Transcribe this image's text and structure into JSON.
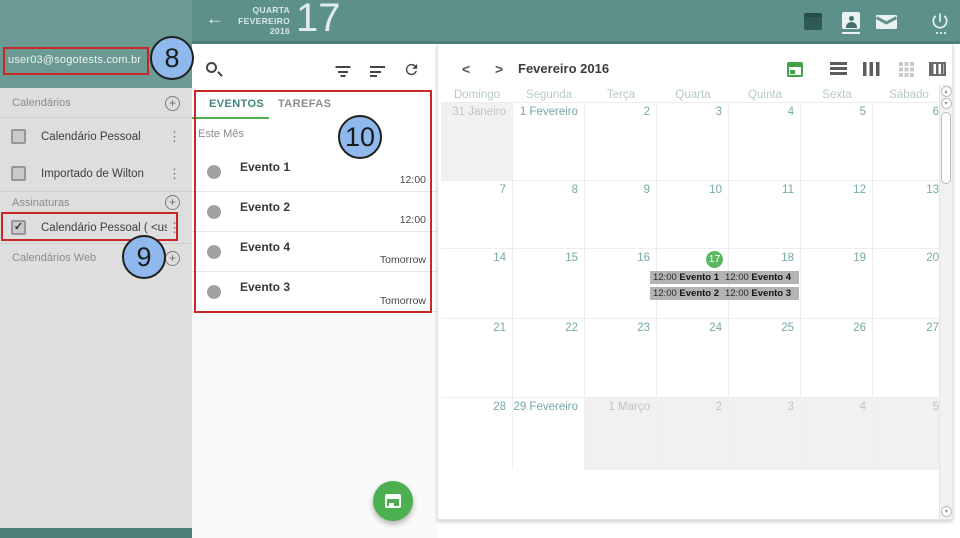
{
  "icons": {
    "back": "←",
    "menu": "⋮",
    "plus": "+",
    "check": "✓",
    "prev": "<",
    "next": ">",
    "scroll_up": "▴",
    "scroll_down": "▾"
  },
  "colors": {
    "accent_green": "#4caf50",
    "header_teal": "#5d908a",
    "sidebar_teal": "#6a9a93",
    "chip_gray": "#b3b3b3",
    "annotation_red": "#c62828",
    "annotation_blue": "#8fb9ec"
  },
  "annotations": {
    "badge8": "8",
    "badge9": "9",
    "badge10": "10"
  },
  "sidebar": {
    "email": "user03@sogotests.com.br",
    "calendars_section": "Calendários",
    "calendars": [
      {
        "label": "Calendário Pessoal",
        "checked": false
      },
      {
        "label": "Importado de Wilton",
        "checked": false
      }
    ],
    "subscriptions_section": "Assinaturas",
    "subscriptions": [
      {
        "label": "Calendário Pessoal ( <user...",
        "checked": true
      }
    ],
    "web_section": "Calendários Web"
  },
  "top_header": {
    "weekday": "QUARTA",
    "month": "FEVEREIRO",
    "year": "2016",
    "day_number": "17"
  },
  "list_panel": {
    "tabs": [
      {
        "label": "EVENTOS",
        "active": true
      },
      {
        "label": "TAREFAS",
        "active": false
      }
    ],
    "group_label": "Este Mês",
    "events": [
      {
        "title": "Evento 1",
        "when": "12:00"
      },
      {
        "title": "Evento 2",
        "when": "12:00"
      },
      {
        "title": "Evento 4",
        "when": "Tomorrow"
      },
      {
        "title": "Evento 3",
        "when": "Tomorrow"
      }
    ]
  },
  "calendar": {
    "title": "Fevereiro 2016",
    "day_headers": [
      "Domingo",
      "Segunda",
      "Terça",
      "Quarta",
      "Quinta",
      "Sexta",
      "Sábado"
    ],
    "weeks": [
      [
        {
          "label": "31 Janeiro",
          "outside": true
        },
        {
          "label": "1 Fevereiro"
        },
        {
          "label": "2"
        },
        {
          "label": "3"
        },
        {
          "label": "4"
        },
        {
          "label": "5"
        },
        {
          "label": "6"
        }
      ],
      [
        {
          "label": "7"
        },
        {
          "label": "8"
        },
        {
          "label": "9"
        },
        {
          "label": "10"
        },
        {
          "label": "11"
        },
        {
          "label": "12"
        },
        {
          "label": "13"
        }
      ],
      [
        {
          "label": "14"
        },
        {
          "label": "15"
        },
        {
          "label": "16"
        },
        {
          "label": "17",
          "today": true,
          "chips": [
            {
              "time": "12:00",
              "title": "Evento 1"
            },
            {
              "time": "12:00",
              "title": "Evento 2"
            }
          ]
        },
        {
          "label": "18",
          "chips": [
            {
              "time": "12:00",
              "title": "Evento 4"
            },
            {
              "time": "12:00",
              "title": "Evento 3"
            }
          ]
        },
        {
          "label": "19"
        },
        {
          "label": "20"
        }
      ],
      [
        {
          "label": "21"
        },
        {
          "label": "22"
        },
        {
          "label": "23"
        },
        {
          "label": "24"
        },
        {
          "label": "25"
        },
        {
          "label": "26"
        },
        {
          "label": "27"
        }
      ],
      [
        {
          "label": "28"
        },
        {
          "label": "29 Fevereiro"
        },
        {
          "label": "1 Março",
          "outside": true
        },
        {
          "label": "2",
          "outside": true
        },
        {
          "label": "3",
          "outside": true
        },
        {
          "label": "4",
          "outside": true
        },
        {
          "label": "5",
          "outside": true
        }
      ]
    ]
  }
}
